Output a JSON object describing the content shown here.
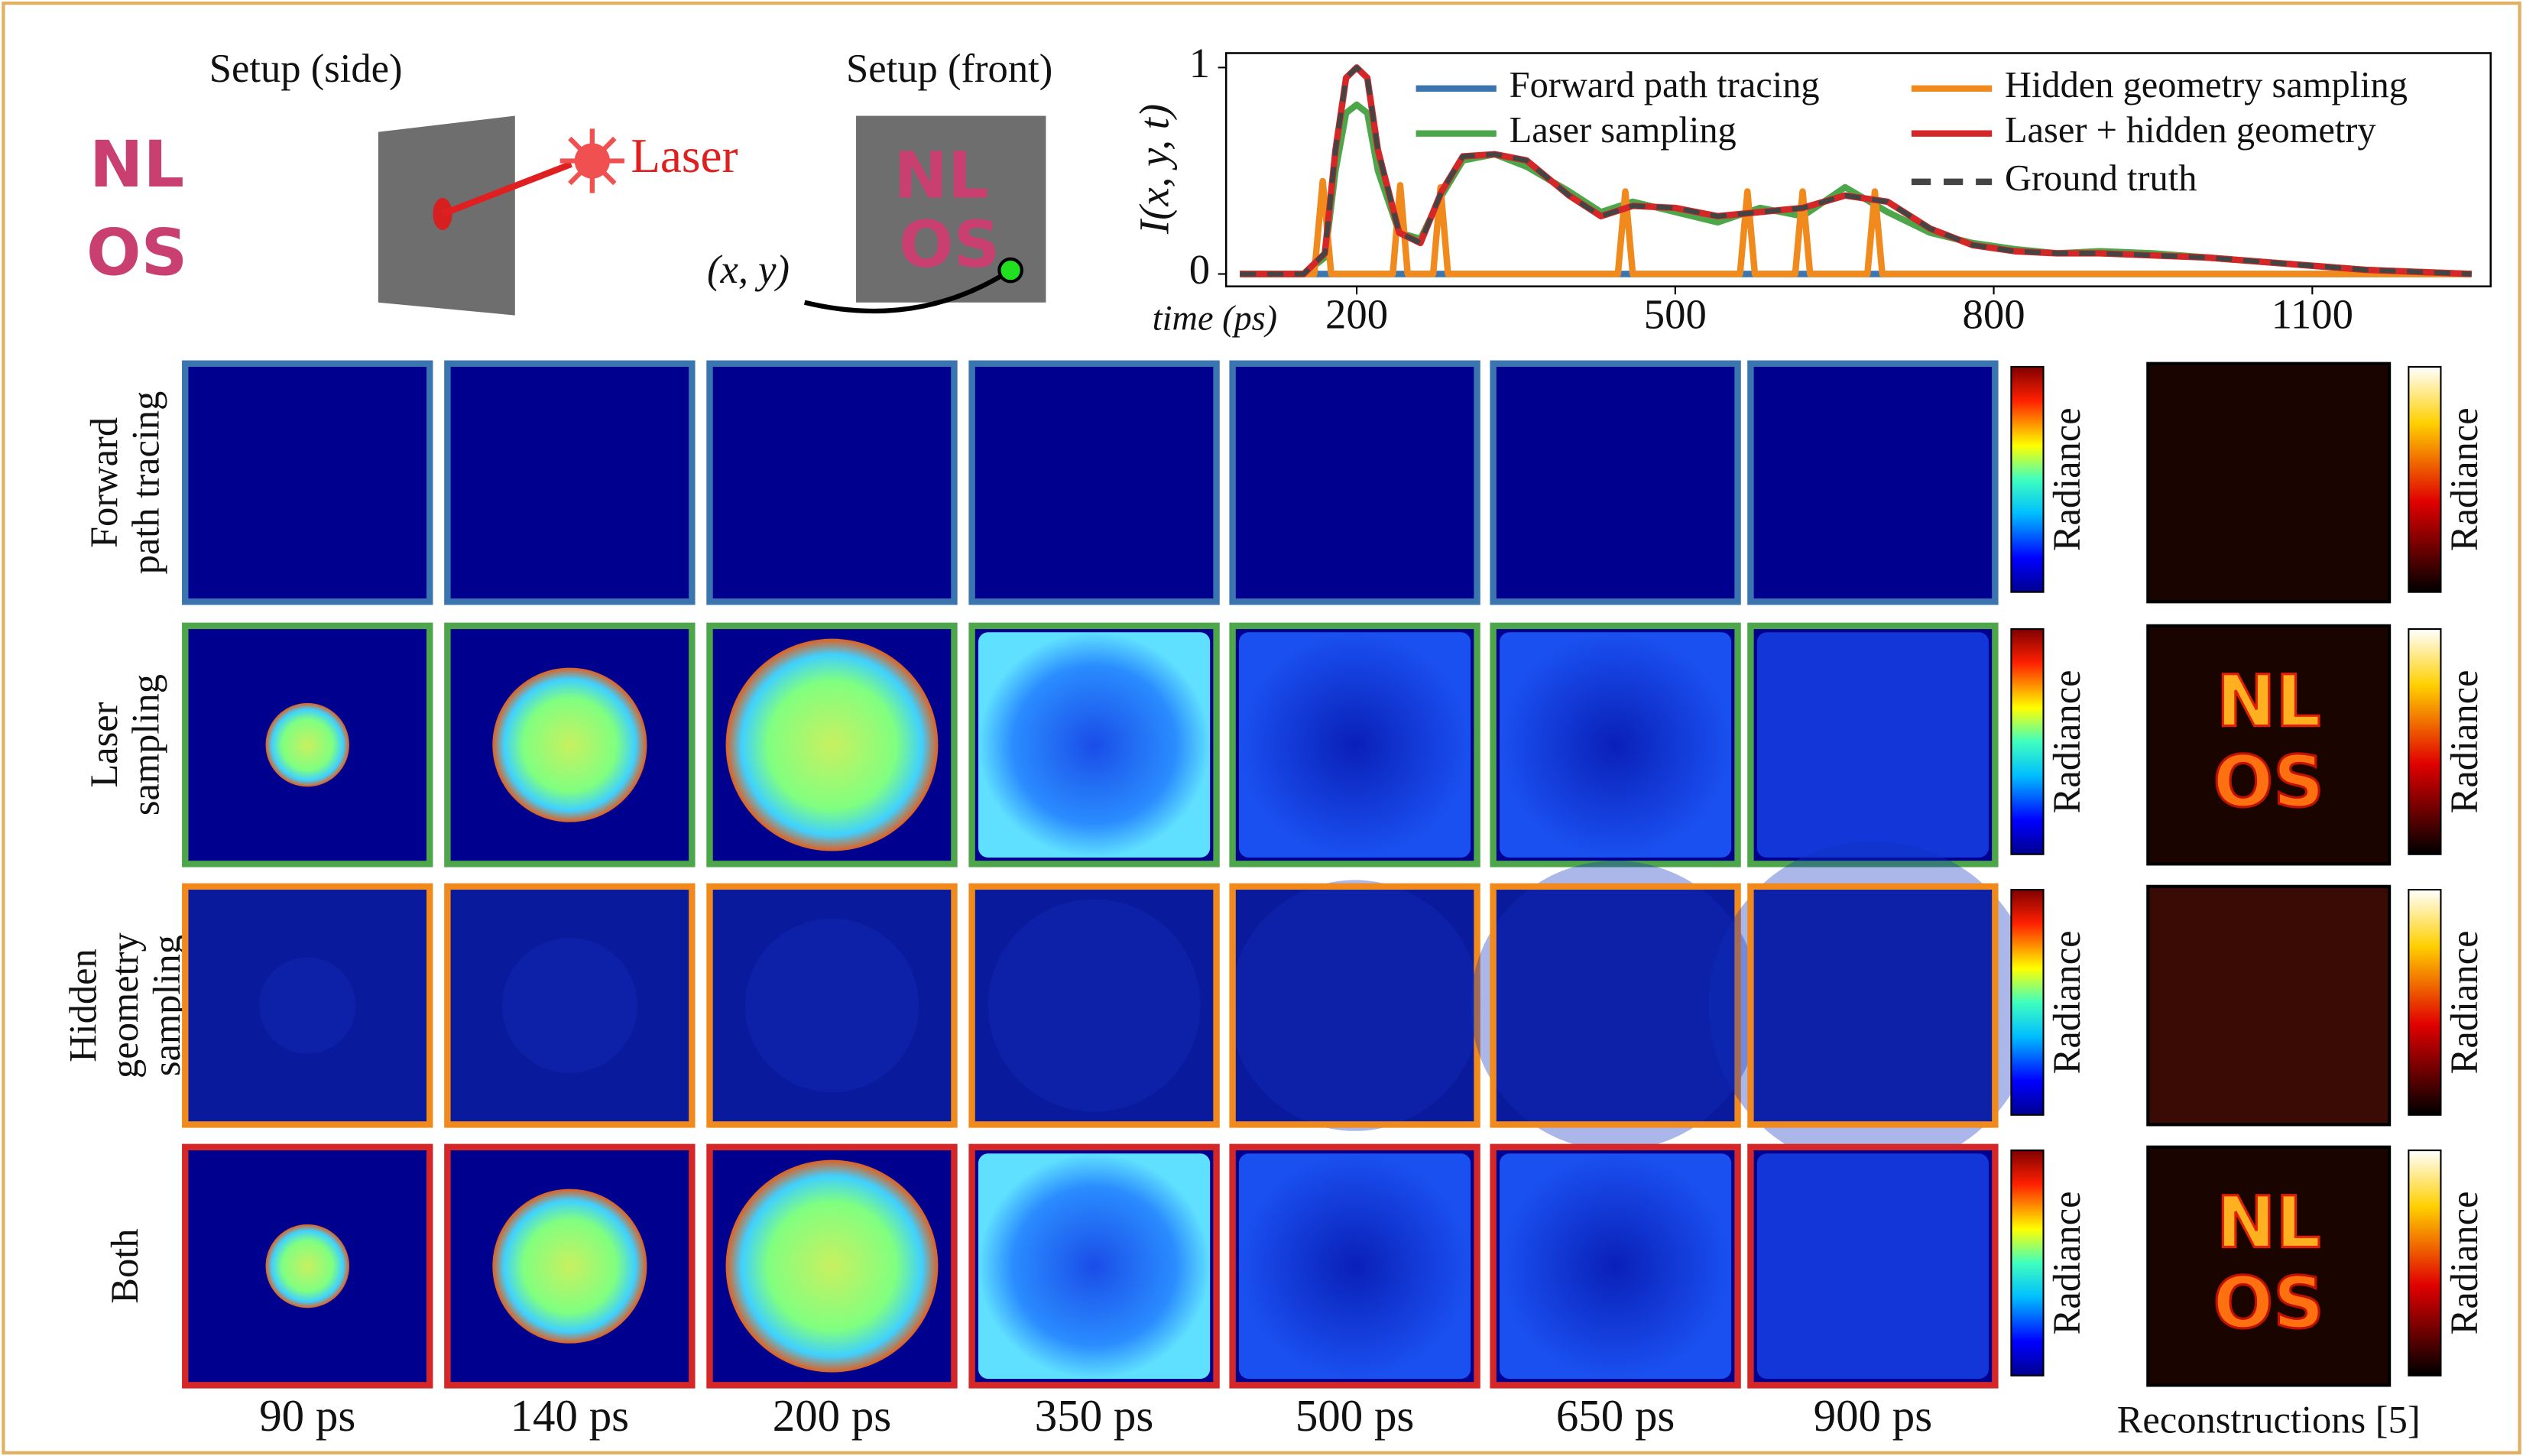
{
  "figure": {
    "setup_side_title": "Setup (side)",
    "setup_front_title": "Setup (front)",
    "laser_label": "Laser",
    "point_label": "(x, y)",
    "scene_letters": [
      "NL",
      "OS"
    ],
    "rows": [
      {
        "label": [
          "Forward",
          "path tracing"
        ],
        "color": "#3b75af"
      },
      {
        "label": [
          "Laser",
          "sampling"
        ],
        "color": "#4ea64a"
      },
      {
        "label": [
          "Hidden",
          "geometry",
          "sampling"
        ],
        "color": "#f08a1c"
      },
      {
        "label": [
          "Both"
        ],
        "color": "#d62728"
      }
    ],
    "columns": [
      "90 ps",
      "140 ps",
      "200 ps",
      "350 ps",
      "500 ps",
      "650 ps",
      "900 ps"
    ],
    "colorbar_label": "Radiance",
    "reconstructions_label": "Reconstructions [5]"
  },
  "chart_data": {
    "type": "line",
    "ylabel": "I(x, y, t)",
    "xlabel": "time (ps)",
    "xlim": [
      77,
      1268
    ],
    "ylim": [
      -0.06,
      1.07
    ],
    "xticks": [
      200,
      500,
      800,
      1100
    ],
    "yticks": [
      0,
      1
    ],
    "legend": "upper right",
    "x": [
      90,
      150,
      170,
      180,
      190,
      200,
      210,
      220,
      240,
      260,
      280,
      300,
      330,
      360,
      400,
      430,
      460,
      500,
      540,
      580,
      620,
      660,
      700,
      740,
      780,
      820,
      860,
      900,
      950,
      1000,
      1050,
      1100,
      1150,
      1200,
      1250
    ],
    "series": [
      {
        "name": "Forward path tracing",
        "color": "#3b75af",
        "linestyle": "solid",
        "values": [
          0,
          0,
          0,
          0,
          0,
          0,
          0,
          0,
          0,
          0,
          0,
          0,
          0,
          0,
          0,
          0,
          0,
          0,
          0,
          0,
          0,
          0,
          0,
          0,
          0,
          0,
          0,
          0,
          0,
          0,
          0,
          0,
          0,
          0,
          0
        ]
      },
      {
        "name": "Laser sampling",
        "color": "#4ea64a",
        "linestyle": "solid",
        "values": [
          0,
          0,
          0.08,
          0.5,
          0.78,
          0.82,
          0.78,
          0.5,
          0.2,
          0.17,
          0.38,
          0.55,
          0.58,
          0.52,
          0.4,
          0.3,
          0.35,
          0.3,
          0.25,
          0.32,
          0.28,
          0.42,
          0.3,
          0.2,
          0.15,
          0.12,
          0.1,
          0.11,
          0.1,
          0.08,
          0.06,
          0.04,
          0.02,
          0.01,
          0
        ]
      },
      {
        "name": "Hidden geometry sampling",
        "color": "#f08a1c",
        "linestyle": "solid",
        "x": [
          90,
          160,
          168,
          176,
          234,
          241,
          248,
          272,
          279,
          286,
          446,
          453,
          460,
          561,
          568,
          575,
          613,
          620,
          627,
          681,
          688,
          695,
          1250
        ],
        "values": [
          0,
          0,
          0.45,
          0,
          0,
          0.43,
          0,
          0,
          0.42,
          0,
          0,
          0.4,
          0,
          0,
          0.4,
          0,
          0,
          0.4,
          0,
          0,
          0.4,
          0,
          0
        ]
      },
      {
        "name": "Laser + hidden geometry",
        "color": "#d62728",
        "linestyle": "solid",
        "values": [
          0,
          0,
          0.1,
          0.6,
          0.95,
          1,
          0.95,
          0.6,
          0.2,
          0.15,
          0.4,
          0.57,
          0.58,
          0.55,
          0.38,
          0.28,
          0.33,
          0.32,
          0.28,
          0.3,
          0.32,
          0.38,
          0.35,
          0.22,
          0.14,
          0.11,
          0.1,
          0.1,
          0.09,
          0.08,
          0.06,
          0.04,
          0.02,
          0.01,
          0
        ]
      },
      {
        "name": "Ground truth",
        "color": "#444444",
        "linestyle": "dashed",
        "values": [
          0,
          0,
          0.1,
          0.6,
          0.95,
          1,
          0.95,
          0.6,
          0.2,
          0.15,
          0.4,
          0.57,
          0.58,
          0.55,
          0.38,
          0.28,
          0.33,
          0.32,
          0.28,
          0.3,
          0.32,
          0.38,
          0.35,
          0.22,
          0.14,
          0.11,
          0.1,
          0.1,
          0.09,
          0.08,
          0.06,
          0.04,
          0.02,
          0.01,
          0
        ]
      }
    ]
  }
}
